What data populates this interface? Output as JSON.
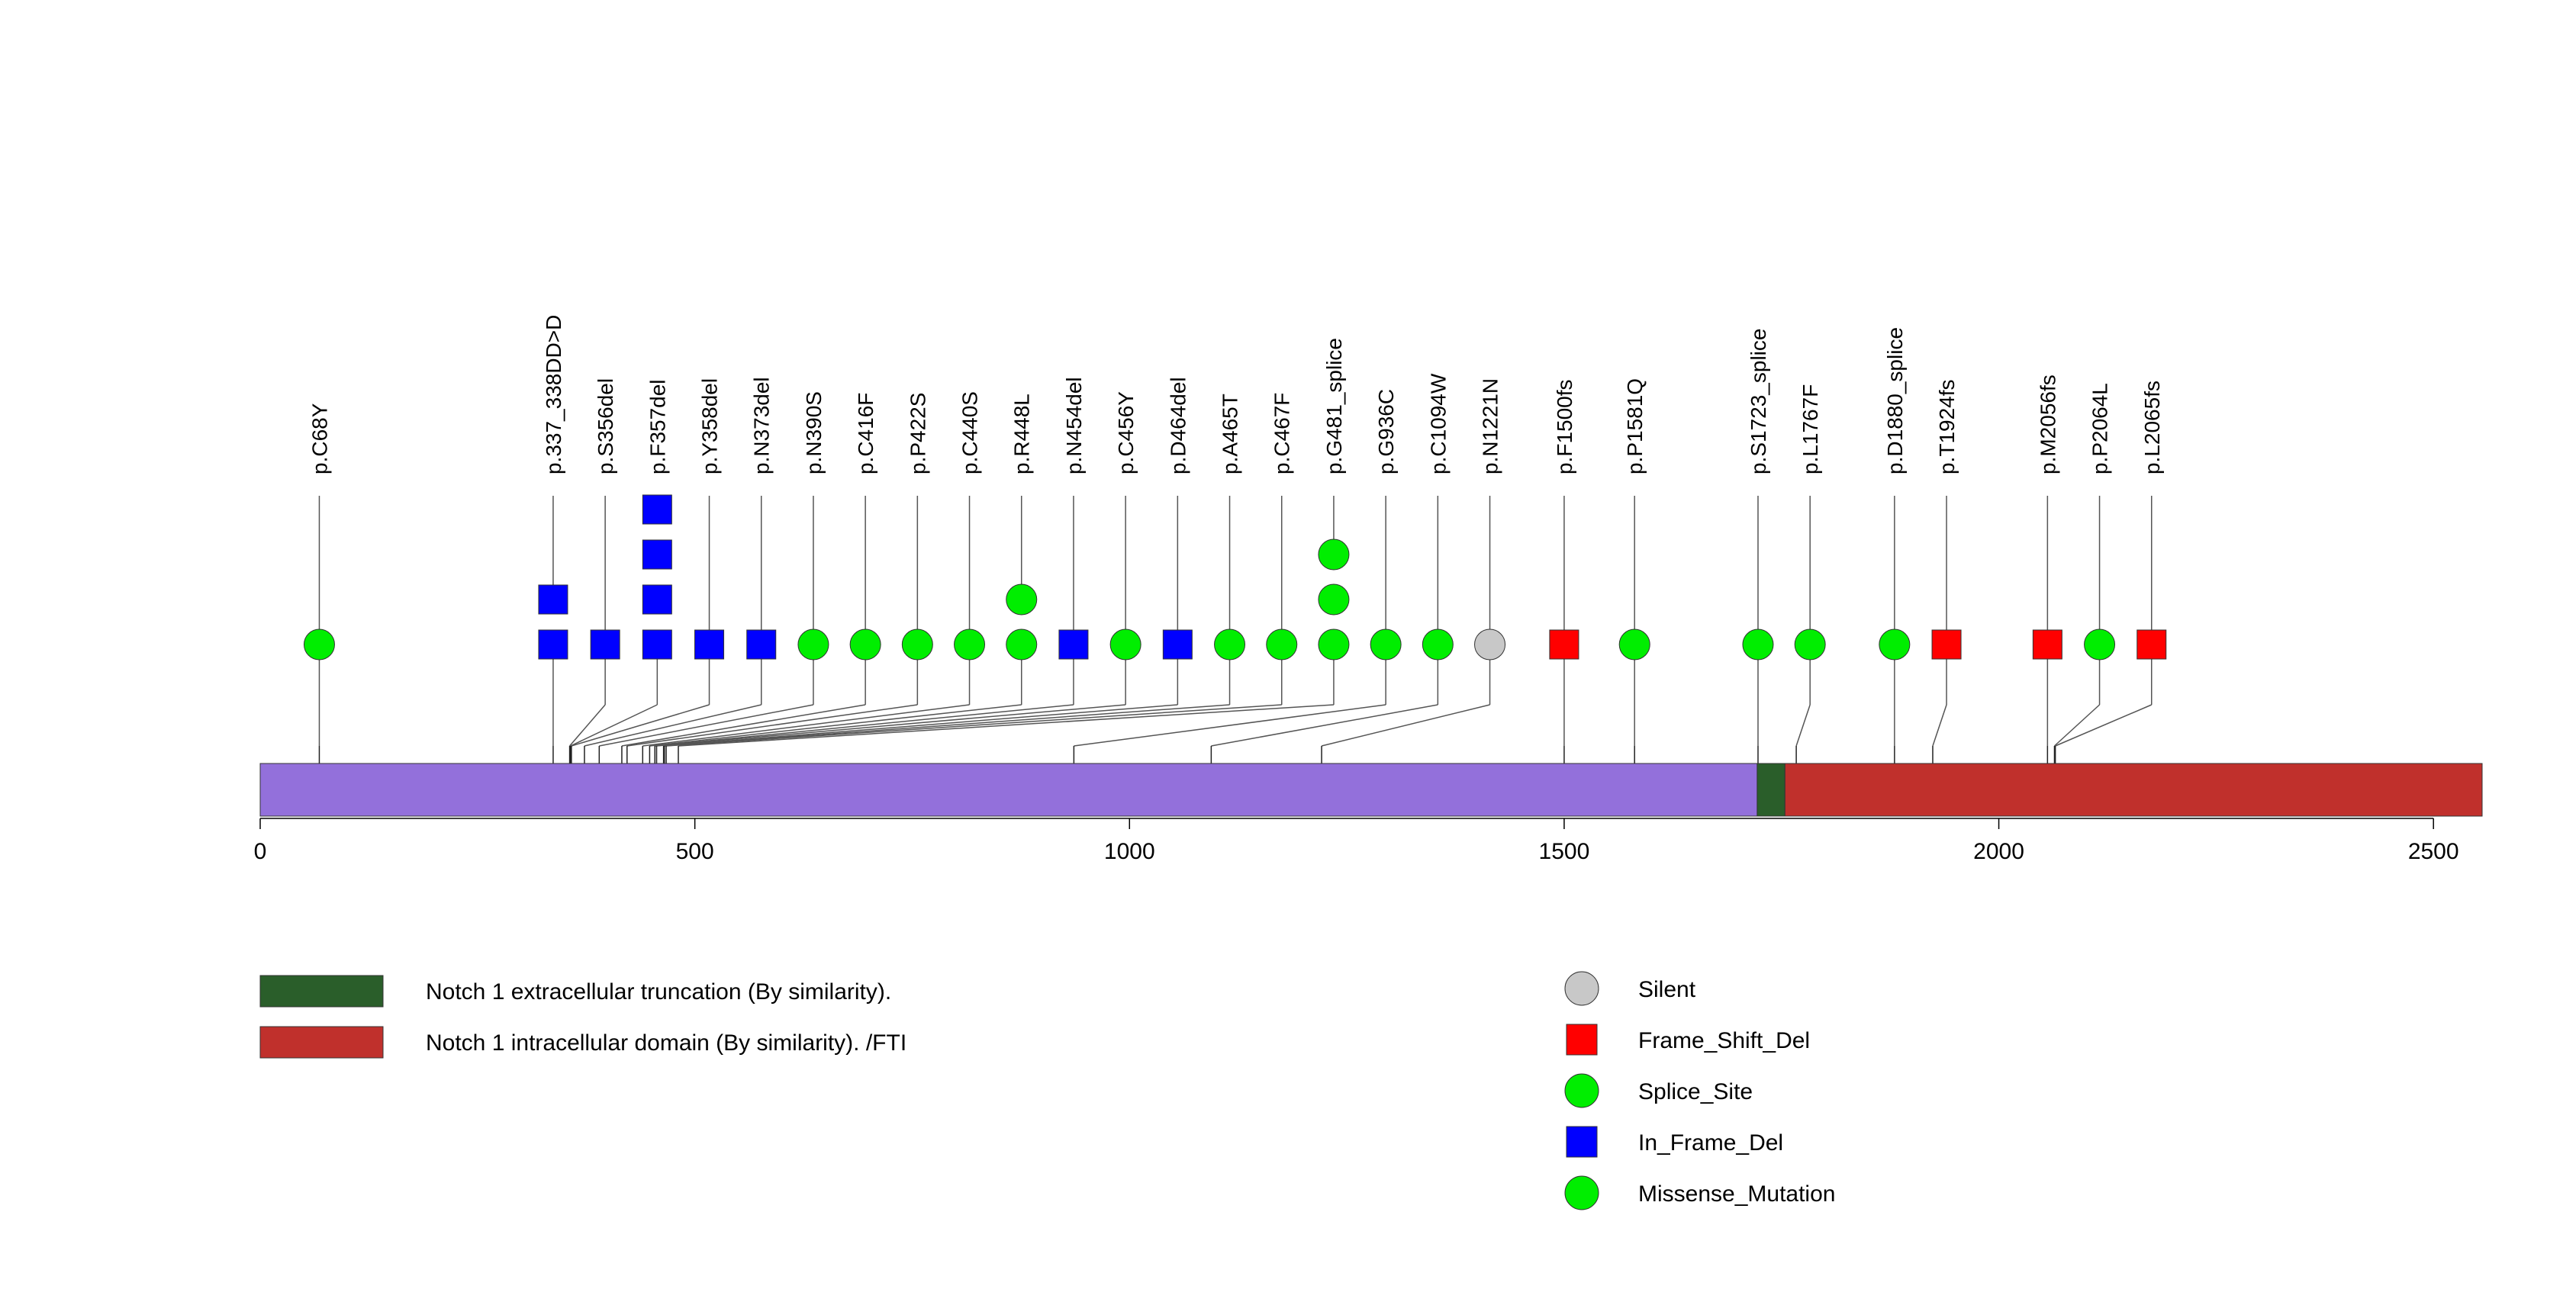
{
  "chart_data": {
    "type": "lollipop",
    "protein_length": 2556,
    "axis": {
      "xlim": [
        0,
        2556
      ],
      "ticks": [
        0,
        500,
        1000,
        1500,
        2000,
        2500
      ]
    },
    "colors": {
      "protein": "#9370DB",
      "Silent": "#C8C8C8",
      "Frame_Shift_Del": "#FF0000",
      "Splice_Site": "#00EE00",
      "In_Frame_Del": "#0000FF",
      "Missense_Mutation": "#00EE00"
    },
    "mutations": [
      {
        "label": "p.C68Y",
        "position": 68,
        "type": "Missense_Mutation",
        "shape": "circle",
        "count": 1
      },
      {
        "label": "p.337_338DD>D",
        "position": 337,
        "type": "In_Frame_Del",
        "shape": "square",
        "count": 2
      },
      {
        "label": "p.S356del",
        "position": 356,
        "type": "In_Frame_Del",
        "shape": "square",
        "count": 1
      },
      {
        "label": "p.F357del",
        "position": 357,
        "type": "In_Frame_Del",
        "shape": "square",
        "count": 4
      },
      {
        "label": "p.Y358del",
        "position": 358,
        "type": "In_Frame_Del",
        "shape": "square",
        "count": 1
      },
      {
        "label": "p.N373del",
        "position": 373,
        "type": "In_Frame_Del",
        "shape": "square",
        "count": 1
      },
      {
        "label": "p.N390S",
        "position": 390,
        "type": "Missense_Mutation",
        "shape": "circle",
        "count": 1
      },
      {
        "label": "p.C416F",
        "position": 416,
        "type": "Missense_Mutation",
        "shape": "circle",
        "count": 1
      },
      {
        "label": "p.P422S",
        "position": 422,
        "type": "Missense_Mutation",
        "shape": "circle",
        "count": 1
      },
      {
        "label": "p.C440S",
        "position": 440,
        "type": "Missense_Mutation",
        "shape": "circle",
        "count": 1
      },
      {
        "label": "p.R448L",
        "position": 448,
        "type": "Missense_Mutation",
        "shape": "circle",
        "count": 2
      },
      {
        "label": "p.N454del",
        "position": 454,
        "type": "In_Frame_Del",
        "shape": "square",
        "count": 1
      },
      {
        "label": "p.C456Y",
        "position": 456,
        "type": "Missense_Mutation",
        "shape": "circle",
        "count": 1
      },
      {
        "label": "p.D464del",
        "position": 464,
        "type": "In_Frame_Del",
        "shape": "square",
        "count": 1
      },
      {
        "label": "p.A465T",
        "position": 465,
        "type": "Missense_Mutation",
        "shape": "circle",
        "count": 1
      },
      {
        "label": "p.C467F",
        "position": 467,
        "type": "Missense_Mutation",
        "shape": "circle",
        "count": 1
      },
      {
        "label": "p.G481_splice",
        "position": 481,
        "type": "Splice_Site",
        "shape": "circle",
        "count": 3
      },
      {
        "label": "p.G936C",
        "position": 936,
        "type": "Missense_Mutation",
        "shape": "circle",
        "count": 1
      },
      {
        "label": "p.C1094W",
        "position": 1094,
        "type": "Missense_Mutation",
        "shape": "circle",
        "count": 1
      },
      {
        "label": "p.N1221N",
        "position": 1221,
        "type": "Silent",
        "shape": "circle",
        "count": 1
      },
      {
        "label": "p.F1500fs",
        "position": 1500,
        "type": "Frame_Shift_Del",
        "shape": "square",
        "count": 1
      },
      {
        "label": "p.P1581Q",
        "position": 1581,
        "type": "Missense_Mutation",
        "shape": "circle",
        "count": 1
      },
      {
        "label": "p.S1723_splice",
        "position": 1723,
        "type": "Splice_Site",
        "shape": "circle",
        "count": 1
      },
      {
        "label": "p.L1767F",
        "position": 1767,
        "type": "Missense_Mutation",
        "shape": "circle",
        "count": 1
      },
      {
        "label": "p.D1880_splice",
        "position": 1880,
        "type": "Splice_Site",
        "shape": "circle",
        "count": 1
      },
      {
        "label": "p.T1924fs",
        "position": 1924,
        "type": "Frame_Shift_Del",
        "shape": "square",
        "count": 1
      },
      {
        "label": "p.M2056fs",
        "position": 2056,
        "type": "Frame_Shift_Del",
        "shape": "square",
        "count": 1
      },
      {
        "label": "p.P2064L",
        "position": 2064,
        "type": "Missense_Mutation",
        "shape": "circle",
        "count": 1
      },
      {
        "label": "p.L2065fs",
        "position": 2065,
        "type": "Frame_Shift_Del",
        "shape": "square",
        "count": 1
      }
    ],
    "domains": [
      {
        "name": "Notch 1 extracellular truncation (By similarity).",
        "start": 1722,
        "end": 1754,
        "color": "#2A5E2A"
      },
      {
        "name": "Notch 1 intracellular domain (By similarity). /FTI",
        "start": 1754,
        "end": 2556,
        "color": "#C0302C"
      }
    ],
    "domain_legend": [
      {
        "label": "Notch 1 extracellular truncation (By similarity).",
        "color": "#2A5E2A"
      },
      {
        "label": "Notch 1 intracellular domain (By similarity). /FTI",
        "color": "#C0302C"
      }
    ],
    "type_legend": [
      {
        "label": "Silent",
        "shape": "circle",
        "color": "#C8C8C8"
      },
      {
        "label": "Frame_Shift_Del",
        "shape": "square",
        "color": "#FF0000"
      },
      {
        "label": "Splice_Site",
        "shape": "circle",
        "color": "#00EE00"
      },
      {
        "label": "In_Frame_Del",
        "shape": "square",
        "color": "#0000FF"
      },
      {
        "label": "Missense_Mutation",
        "shape": "circle",
        "color": "#00EE00"
      }
    ]
  }
}
